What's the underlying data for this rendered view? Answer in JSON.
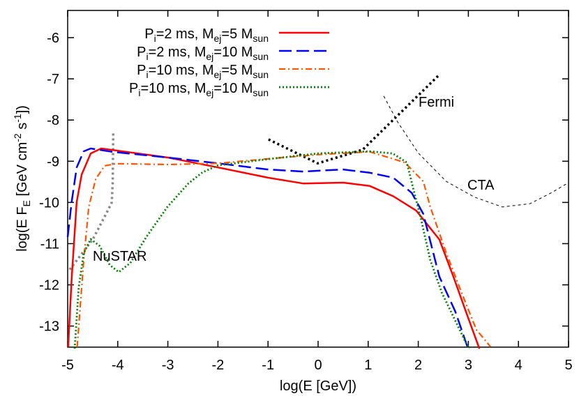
{
  "chart_data": {
    "type": "line",
    "xlabel": "log(E [GeV])",
    "ylabel_parts": [
      "log(E F",
      "E",
      " [GeV cm",
      "-2",
      " s",
      "-1",
      "])"
    ],
    "xlim": [
      -5,
      5
    ],
    "ylim": [
      -13.5,
      -5.4
    ],
    "x_ticks": [
      -5,
      -4,
      -3,
      -2,
      -1,
      0,
      1,
      2,
      3,
      4,
      5
    ],
    "y_ticks": [
      -6,
      -7,
      -8,
      -9,
      -10,
      -11,
      -12,
      -13
    ],
    "grid": false,
    "legend_position": "top-right",
    "series": [
      {
        "name_parts": [
          "P",
          "i",
          "=2 ms, M",
          "ej",
          "=5 M",
          "sun"
        ],
        "color": "#ff0000",
        "style": "solid",
        "x": [
          -4.99,
          -4.92,
          -4.82,
          -4.72,
          -4.54,
          -4.33,
          -3,
          -2,
          -1,
          -0.3,
          0.5,
          1.03,
          1.5,
          1.96,
          2.42,
          2.7,
          2.98,
          3.22
        ],
        "y": [
          -13.51,
          -11.85,
          -9.99,
          -9.32,
          -8.81,
          -8.69,
          -8.91,
          -9.15,
          -9.4,
          -9.54,
          -9.52,
          -9.6,
          -9.85,
          -10.2,
          -10.9,
          -11.8,
          -12.75,
          -13.55
        ]
      },
      {
        "name_parts": [
          "P",
          "i",
          "=2 ms, M",
          "ej",
          "=10 M",
          "sun"
        ],
        "color": "#0000ff",
        "style": "dashed",
        "x": [
          -5,
          -4.92,
          -4.82,
          -4.68,
          -4.54,
          -4.12,
          -3,
          -2,
          -1,
          -0.3,
          0.5,
          1.03,
          1.5,
          1.87,
          2.1,
          2.42,
          2.74,
          2.98
        ],
        "y": [
          -10.84,
          -9.99,
          -9.15,
          -8.76,
          -8.69,
          -8.77,
          -8.91,
          -9.05,
          -9.2,
          -9.25,
          -9.2,
          -9.28,
          -9.4,
          -9.77,
          -10.28,
          -11.8,
          -12.65,
          -13.5
        ]
      },
      {
        "name_parts": [
          "P",
          "i",
          "=10 ms, M",
          "ej",
          "=5 M",
          "sun"
        ],
        "color": "#ff5500",
        "style": "dashdot",
        "x": [
          -4.81,
          -4.68,
          -4.58,
          -4.44,
          -4.26,
          -4.03,
          -3,
          -2,
          -1,
          0,
          1.03,
          1.73,
          2.1,
          2.24,
          2.56,
          2.88,
          3.16,
          3.44
        ],
        "y": [
          -13.51,
          -11.4,
          -10.11,
          -9.43,
          -9.11,
          -9.06,
          -9.08,
          -9.05,
          -8.94,
          -8.84,
          -8.77,
          -9.03,
          -9.49,
          -10.11,
          -11.23,
          -12.24,
          -13.09,
          -13.5
        ]
      },
      {
        "name_parts": [
          "P",
          "i",
          "=10 ms, M",
          "ej",
          "=10 M",
          "sun"
        ],
        "color": "#008000",
        "style": "dotted",
        "x": [
          -4.86,
          -4.78,
          -4.68,
          -4.54,
          -4.36,
          -4.16,
          -3.98,
          -3.75,
          -3.43,
          -3.01,
          -2.59,
          -2.31,
          -2,
          -1,
          0,
          1.03,
          1.49,
          1.77,
          1.91,
          2.05,
          2.24,
          2.47,
          2.74,
          2.94,
          3.02
        ],
        "y": [
          -13.55,
          -12.07,
          -11.23,
          -10.89,
          -11.06,
          -11.52,
          -11.69,
          -11.47,
          -10.84,
          -10.11,
          -9.54,
          -9.27,
          -9.1,
          -8.95,
          -8.81,
          -8.76,
          -8.81,
          -9.03,
          -9.71,
          -10.38,
          -11.4,
          -12.19,
          -12.87,
          -13.38,
          -13.55
        ]
      }
    ],
    "sensitivity_curves": [
      {
        "label": "Fermi",
        "color": "#000000",
        "style": "thick-dotted",
        "x": [
          -0.99,
          -0.01,
          0.89,
          2.42
        ],
        "y": [
          -8.47,
          -9.05,
          -8.72,
          -6.9
        ]
      },
      {
        "label": "CTA",
        "color": "#000000",
        "style": "thin-dashed",
        "x": [
          1.31,
          1.59,
          2.0,
          2.56,
          3.12,
          3.68,
          4.23,
          4.65,
          5.0
        ],
        "y": [
          -7.42,
          -8.05,
          -8.8,
          -9.49,
          -9.87,
          -10.11,
          -10.03,
          -9.77,
          -9.52
        ]
      },
      {
        "label": "NuSTAR",
        "color": "#888888",
        "style": "thick-dotted",
        "x": [
          -4.96,
          -4.5,
          -4.2,
          -4.12,
          -4.1,
          -4.09
        ],
        "y": [
          -11.63,
          -10.9,
          -10.2,
          -10.0,
          -9.5,
          -8.3
        ]
      }
    ]
  }
}
